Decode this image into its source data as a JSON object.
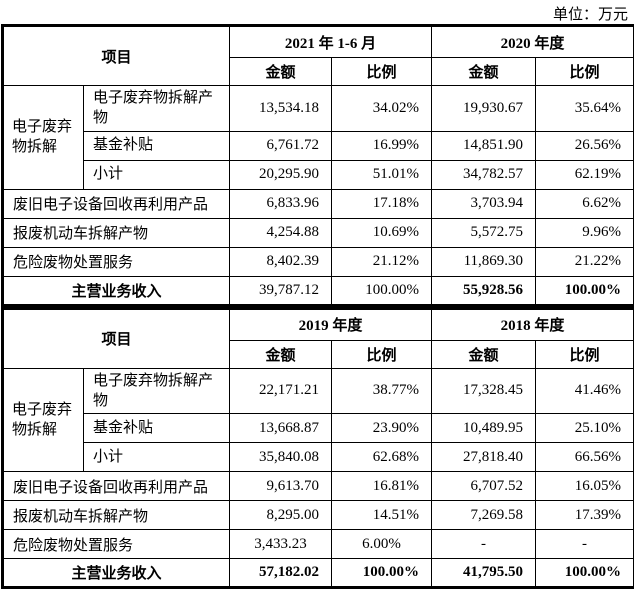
{
  "unit_label": "单位：万元",
  "colors": {
    "border": "#000000",
    "text": "#000000",
    "background": "#ffffff"
  },
  "header_labels": {
    "item": "项目",
    "amount": "金额",
    "ratio": "比例"
  },
  "tables": [
    {
      "periods": [
        "2021 年 1-6 月",
        "2020 年度"
      ],
      "rows": [
        {
          "type": "group-first",
          "group": "电子废弃物拆解",
          "label": "电子废弃物拆解产物",
          "values": [
            "13,534.18",
            "34.02%",
            "19,930.67",
            "35.64%"
          ]
        },
        {
          "type": "group",
          "label": "基金补贴",
          "values": [
            "6,761.72",
            "16.99%",
            "14,851.90",
            "26.56%"
          ]
        },
        {
          "type": "group",
          "label": "小计",
          "values": [
            "20,295.90",
            "51.01%",
            "34,782.57",
            "62.19%"
          ]
        },
        {
          "type": "plain",
          "label": "废旧电子设备回收再利用产品",
          "values": [
            "6,833.96",
            "17.18%",
            "3,703.94",
            "6.62%"
          ]
        },
        {
          "type": "plain",
          "label": "报废机动车拆解产物",
          "values": [
            "4,254.88",
            "10.69%",
            "5,572.75",
            "9.96%"
          ]
        },
        {
          "type": "plain",
          "label": "危险废物处置服务",
          "values": [
            "8,402.39",
            "21.12%",
            "11,869.30",
            "21.22%"
          ]
        },
        {
          "type": "total",
          "label": "主营业务收入",
          "values": [
            "39,787.12",
            "100.00%",
            "55,928.56",
            "100.00%"
          ],
          "values_bold": [
            false,
            false,
            true,
            true
          ]
        }
      ]
    },
    {
      "periods": [
        "2019 年度",
        "2018 年度"
      ],
      "rows": [
        {
          "type": "group-first",
          "group": "电子废弃物拆解",
          "label": "电子废弃物拆解产物",
          "values": [
            "22,171.21",
            "38.77%",
            "17,328.45",
            "41.46%"
          ]
        },
        {
          "type": "group",
          "label": "基金补贴",
          "values": [
            "13,668.87",
            "23.90%",
            "10,489.95",
            "25.10%"
          ]
        },
        {
          "type": "group",
          "label": "小计",
          "values": [
            "35,840.08",
            "62.68%",
            "27,818.40",
            "66.56%"
          ]
        },
        {
          "type": "plain",
          "label": "废旧电子设备回收再利用产品",
          "values": [
            "9,613.70",
            "16.81%",
            "6,707.52",
            "16.05%"
          ]
        },
        {
          "type": "plain",
          "label": "报废机动车拆解产物",
          "values": [
            "8,295.00",
            "14.51%",
            "7,269.58",
            "17.39%"
          ]
        },
        {
          "type": "plain",
          "label": "危险废物处置服务",
          "values": [
            "3,433.23",
            "6.00%",
            "-",
            "-"
          ],
          "values_align": "center"
        },
        {
          "type": "total",
          "label": "主营业务收入",
          "values": [
            "57,182.02",
            "100.00%",
            "41,795.50",
            "100.00%"
          ],
          "values_bold": [
            true,
            true,
            true,
            true
          ]
        }
      ]
    }
  ]
}
